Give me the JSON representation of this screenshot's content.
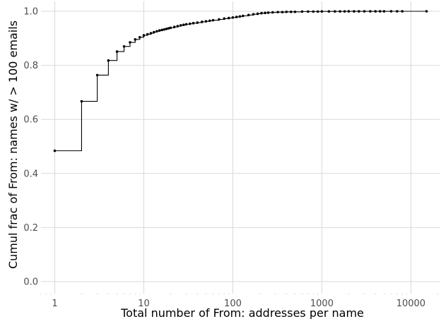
{
  "chart_data": {
    "type": "line",
    "subtype": "ecdf-step",
    "title": "",
    "xlabel": "Total number of From: addresses per name",
    "ylabel": "Cumul frac of From: names w/ > 100 emails",
    "x_scale": "log10",
    "xlim": [
      0.7,
      21000
    ],
    "ylim": [
      0,
      1
    ],
    "x_ticks": [
      1,
      10,
      100,
      1000,
      10000
    ],
    "x_tick_labels": [
      "1",
      "10",
      "100",
      "1000",
      "10000"
    ],
    "y_ticks": [
      0,
      0.2,
      0.4,
      0.6,
      0.8,
      1.0
    ],
    "y_tick_labels": [
      "0.0",
      "0.2",
      "0.4",
      "0.6",
      "0.8",
      "1.0"
    ],
    "grid": true,
    "legend": "none",
    "line_color": "#000000",
    "series": [
      {
        "x": [
          1,
          2,
          3,
          4,
          5,
          6,
          7,
          8,
          9,
          10,
          11,
          12,
          13,
          14,
          15,
          16,
          17,
          18,
          19,
          20,
          22,
          24,
          26,
          28,
          30,
          33,
          36,
          40,
          45,
          50,
          55,
          60,
          70,
          80,
          90,
          100,
          110,
          120,
          130,
          150,
          170,
          190,
          210,
          230,
          250,
          280,
          320,
          360,
          400,
          450,
          500,
          600,
          700,
          800,
          900,
          1000,
          1200,
          1400,
          1600,
          1800,
          2000,
          2300,
          2600,
          3000,
          3500,
          4000,
          4500,
          5000,
          6000,
          7000,
          8000,
          15000
        ],
        "y": [
          0.484,
          0.667,
          0.764,
          0.818,
          0.851,
          0.87,
          0.885,
          0.896,
          0.904,
          0.911,
          0.915,
          0.919,
          0.923,
          0.926,
          0.929,
          0.931,
          0.933,
          0.935,
          0.937,
          0.939,
          0.942,
          0.945,
          0.948,
          0.95,
          0.952,
          0.954,
          0.956,
          0.958,
          0.961,
          0.963,
          0.965,
          0.967,
          0.97,
          0.973,
          0.975,
          0.977,
          0.979,
          0.981,
          0.983,
          0.986,
          0.989,
          0.991,
          0.993,
          0.994,
          0.995,
          0.996,
          0.997,
          0.997,
          0.998,
          0.998,
          0.998,
          0.999,
          0.999,
          0.999,
          0.999,
          0.9995,
          0.9996,
          0.9996,
          0.9997,
          0.9997,
          0.9998,
          0.9998,
          0.9998,
          0.9999,
          0.9999,
          0.9999,
          0.9999,
          0.9999,
          1.0,
          1.0,
          1.0,
          1.0
        ]
      }
    ]
  }
}
